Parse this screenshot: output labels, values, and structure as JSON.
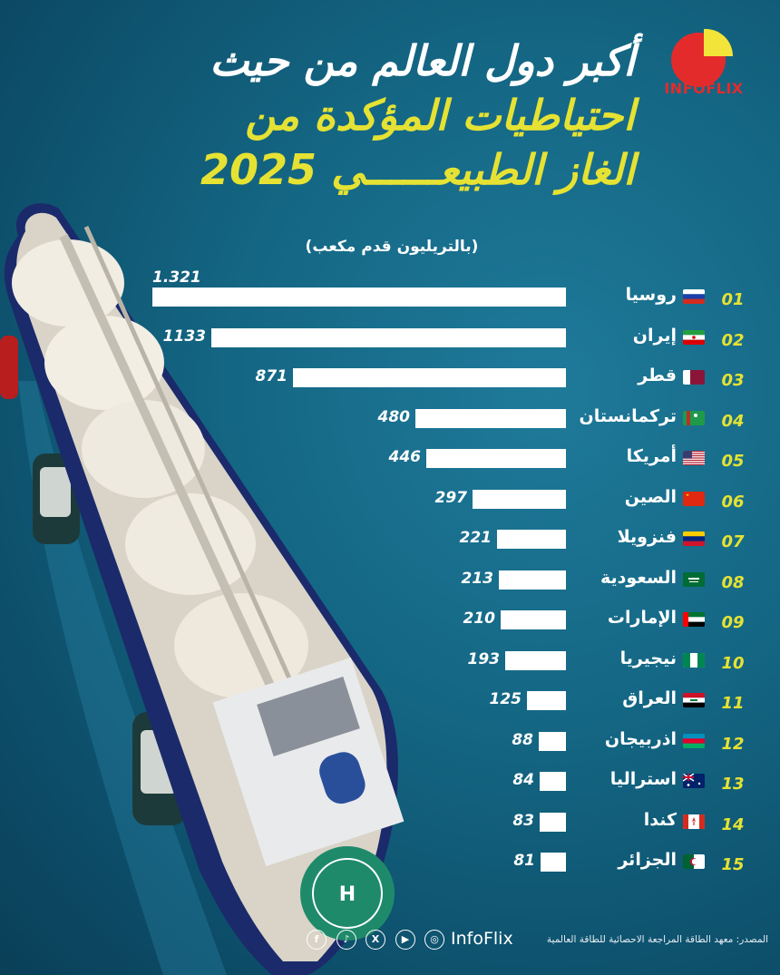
{
  "header": {
    "title_line1": "أكبر دول العالم من حيث",
    "title_line2": "احتياطيات المؤكدة من",
    "title_line3": "الغاز الطبيعــــــي 2025",
    "unit_note": "(بالتريليون قدم مكعب)",
    "brand": "INFOFLIX"
  },
  "chart_data": {
    "type": "bar",
    "orientation": "horizontal",
    "categories": [
      "روسيا",
      "إيران",
      "قطر",
      "تركمانستان",
      "أمريكا",
      "الصين",
      "فنزويلا",
      "السعودية",
      "الإمارات",
      "نيجيريا",
      "العراق",
      "اذربيجان",
      "استراليا",
      "كندا",
      "الجزائر"
    ],
    "ranks": [
      "01",
      "02",
      "03",
      "04",
      "05",
      "06",
      "07",
      "08",
      "09",
      "10",
      "11",
      "12",
      "13",
      "14",
      "15"
    ],
    "values": [
      1321,
      1133,
      871,
      480,
      446,
      297,
      221,
      213,
      210,
      193,
      125,
      88,
      84,
      83,
      81
    ],
    "value_labels": [
      "1.321",
      "1133",
      "871",
      "480",
      "446",
      "297",
      "221",
      "213",
      "210",
      "193",
      "125",
      "88",
      "84",
      "83",
      "81"
    ],
    "flags": [
      "russia-flag",
      "iran-flag",
      "qatar-flag",
      "turkmenistan-flag",
      "usa-flag",
      "china-flag",
      "venezuela-flag",
      "saudi-flag",
      "uae-flag",
      "nigeria-flag",
      "iraq-flag",
      "azerbaijan-flag",
      "australia-flag",
      "canada-flag",
      "algeria-flag"
    ]
  },
  "footer": {
    "source": "المصدر: معهد الطاقة المراجعة الاحصائية للطاقة العالمية",
    "brand": "InfoFlix",
    "social": [
      "instagram-icon",
      "youtube-icon",
      "x-icon",
      "tiktok-icon",
      "facebook-icon"
    ]
  },
  "colors": {
    "accent_yellow": "#e6e233",
    "brand_red": "#e42b2b",
    "bar": "#ffffff"
  }
}
